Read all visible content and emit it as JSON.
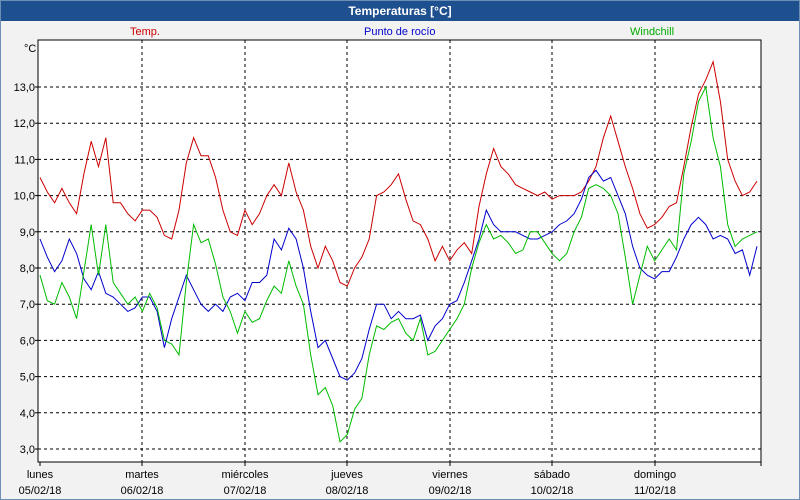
{
  "window": {
    "title": "Temperaturas [°C]"
  },
  "chart_data": {
    "type": "line",
    "title": "Temperaturas [°C]",
    "ylabel": "°C",
    "ylim": [
      2.6,
      14.1
    ],
    "yticks": [
      "3,0",
      "4,0",
      "5,0",
      "6,0",
      "7,0",
      "8,0",
      "9,0",
      "10,0",
      "11,0",
      "12,0",
      "13,0"
    ],
    "x_labels": [
      {
        "day": "lunes",
        "date": "05/02/18"
      },
      {
        "day": "martes",
        "date": "06/02/18"
      },
      {
        "day": "miércoles",
        "date": "07/02/18"
      },
      {
        "day": "jueves",
        "date": "08/02/18"
      },
      {
        "day": "viernes",
        "date": "09/02/18"
      },
      {
        "day": "sábado",
        "date": "10/02/18"
      },
      {
        "day": "domingo",
        "date": "11/02/18"
      }
    ],
    "grid": true,
    "series": [
      {
        "name": "Temp.",
        "color": "#cc0000",
        "values": [
          10.5,
          10.1,
          9.8,
          10.2,
          9.8,
          9.5,
          10.6,
          11.5,
          10.8,
          11.6,
          9.8,
          9.8,
          9.5,
          9.3,
          9.6,
          9.6,
          9.4,
          8.9,
          8.8,
          9.6,
          10.9,
          11.6,
          11.1,
          11.1,
          10.5,
          9.6,
          9.0,
          8.9,
          9.6,
          9.2,
          9.5,
          10.0,
          10.3,
          10.0,
          10.9,
          10.1,
          9.6,
          8.6,
          8.0,
          8.6,
          8.2,
          7.6,
          7.5,
          8.0,
          8.3,
          8.8,
          10.0,
          10.1,
          10.3,
          10.6,
          9.9,
          9.3,
          9.2,
          8.8,
          8.2,
          8.6,
          8.2,
          8.5,
          8.7,
          8.4,
          9.7,
          10.6,
          11.3,
          10.8,
          10.6,
          10.3,
          10.2,
          10.1,
          10.0,
          10.1,
          9.9,
          10.0,
          10.0,
          10.0,
          10.1,
          10.4,
          10.8,
          11.6,
          12.2,
          11.5,
          10.8,
          10.2,
          9.5,
          9.1,
          9.2,
          9.4,
          9.7,
          9.8,
          10.8,
          11.9,
          12.8,
          13.2,
          13.7,
          12.6,
          11.0,
          10.4,
          10.0,
          10.1,
          10.4
        ]
      },
      {
        "name": "Punto de rocío",
        "color": "#0000cc",
        "values": [
          8.8,
          8.3,
          7.9,
          8.2,
          8.8,
          8.4,
          7.7,
          7.4,
          7.9,
          7.3,
          7.2,
          7.0,
          6.8,
          6.9,
          7.2,
          7.2,
          6.8,
          5.8,
          6.6,
          7.2,
          7.8,
          7.4,
          7.0,
          6.8,
          7.0,
          6.8,
          7.2,
          7.3,
          7.1,
          7.6,
          7.6,
          7.8,
          8.8,
          8.5,
          9.1,
          8.8,
          8.0,
          6.8,
          5.8,
          6.0,
          5.5,
          5.0,
          4.9,
          5.1,
          5.5,
          6.3,
          7.0,
          7.0,
          6.6,
          6.8,
          6.6,
          6.6,
          6.7,
          6.0,
          6.4,
          6.6,
          7.0,
          7.1,
          7.6,
          8.2,
          8.8,
          9.6,
          9.2,
          9.0,
          9.0,
          9.0,
          8.9,
          8.8,
          8.8,
          8.9,
          9.0,
          9.2,
          9.3,
          9.5,
          9.9,
          10.5,
          10.7,
          10.4,
          10.5,
          10.0,
          9.5,
          8.6,
          8.0,
          7.8,
          7.7,
          7.9,
          7.9,
          8.3,
          8.8,
          9.2,
          9.4,
          9.2,
          8.8,
          8.9,
          8.8,
          8.4,
          8.5,
          7.8,
          8.6
        ]
      },
      {
        "name": "Windchill",
        "color": "#00bb00",
        "values": [
          7.8,
          7.1,
          7.0,
          7.6,
          7.2,
          6.6,
          7.9,
          9.2,
          7.8,
          9.2,
          7.6,
          7.3,
          7.0,
          7.2,
          6.8,
          7.3,
          6.9,
          6.0,
          5.9,
          5.6,
          7.6,
          9.2,
          8.7,
          8.8,
          8.1,
          7.2,
          6.8,
          6.2,
          6.8,
          6.5,
          6.6,
          7.1,
          7.5,
          7.3,
          8.2,
          7.5,
          7.0,
          5.6,
          4.5,
          4.7,
          4.2,
          3.2,
          3.4,
          4.1,
          4.4,
          5.6,
          6.4,
          6.3,
          6.5,
          6.6,
          6.2,
          6.0,
          6.6,
          5.6,
          5.7,
          6.0,
          6.3,
          6.6,
          7.0,
          8.0,
          8.7,
          9.2,
          8.8,
          8.9,
          8.7,
          8.4,
          8.5,
          9.0,
          9.0,
          8.7,
          8.4,
          8.2,
          8.4,
          9.0,
          9.4,
          10.2,
          10.3,
          10.2,
          10.0,
          9.5,
          8.3,
          7.0,
          7.8,
          8.6,
          8.2,
          8.5,
          8.8,
          8.5,
          10.6,
          11.5,
          12.6,
          13.0,
          11.6,
          10.8,
          9.2,
          8.6,
          8.8,
          8.9,
          9.0
        ]
      }
    ]
  }
}
